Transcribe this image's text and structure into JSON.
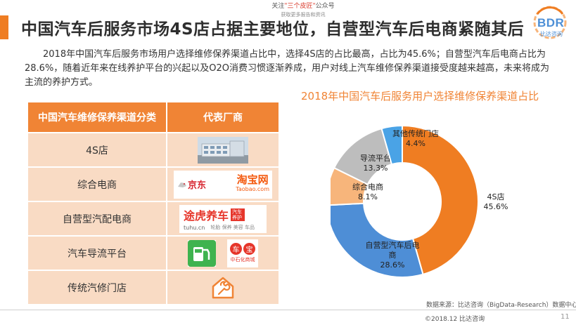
{
  "watermark": {
    "line1_pre": "关注",
    "line1_hl": "\"三个皮匠\"",
    "line1_post": "公众号",
    "line2": "获取更多报告和资讯"
  },
  "title": "中国汽车后服务市场4S店占据主要地位，自营型汽车后电商紧随其后",
  "logo": {
    "text": "BDR",
    "sub": "比达咨询"
  },
  "intro": "2018年中国汽车后服务市场用户选择维修保养渠道占比中，选择4S店的占比最高，占比为45.6%；自营型汽车后电商占比为28.6%，随着近年来在线养护平台的兴起以及O2O消费习惯逐渐养成，用户对线上汽车维修保养渠道接受度越来越高，未来将成为主流的养护方式。",
  "table": {
    "headers": [
      "中国汽车维修保养渠道分类",
      "代表厂商"
    ],
    "rows": [
      {
        "category": "4S店",
        "vendor_icon": "building-photo"
      },
      {
        "category": "综合电商",
        "vendor_icon": "jd-taobao-logos",
        "jd": "京东",
        "taobao": "淘宝网",
        "taobao_url": "Taobao.com"
      },
      {
        "category": "自营型汽配电商",
        "vendor_icon": "tuhu-logo",
        "tuhu": "途虎养车",
        "tuhu_tag": "汽车养护",
        "tuhu_url": "tuhu.cn",
        "tuhu_sub": "轮胎 保养 美容 车品"
      },
      {
        "category": "汽车导流平台",
        "vendor_icon": "fuel-logos",
        "che": "车",
        "bao": "宝",
        "sinopec": "中石化商城"
      },
      {
        "category": "传统汽修门店",
        "vendor_icon": "garage-wrench-icon"
      }
    ]
  },
  "colors": {
    "accent": "#f08435",
    "table_row": "#f9dbc4",
    "slice_4s": "#ef7d22",
    "slice_selfop": "#4e8ed6",
    "slice_ecom": "#f7b57b",
    "slice_guide": "#bdbdbd",
    "slice_other": "#4aa3e6"
  },
  "chart_data": {
    "type": "pie",
    "title": "2018年中国汽车后服务用户选择维修保养渠道占比",
    "donut": true,
    "slices": [
      {
        "label": "4S店",
        "value": 45.6,
        "value_label": "45.6%",
        "color": "#ef7d22"
      },
      {
        "label": "自营型汽车后电商",
        "value": 28.6,
        "value_label": "28.6%",
        "color": "#4e8ed6"
      },
      {
        "label": "综合电商",
        "value": 8.1,
        "value_label": "8.1%",
        "color": "#f7b57b"
      },
      {
        "label": "导流平台",
        "value": 13.3,
        "value_label": "13.3%",
        "color": "#bdbdbd"
      },
      {
        "label": "其他传统门店",
        "value": 4.4,
        "value_label": "4.4%",
        "color": "#4aa3e6"
      }
    ]
  },
  "footer": {
    "source": "数据来源：比达咨询（BigData-Research）数据中心",
    "copyright": "©2018.12 比达咨询",
    "page": "11"
  }
}
